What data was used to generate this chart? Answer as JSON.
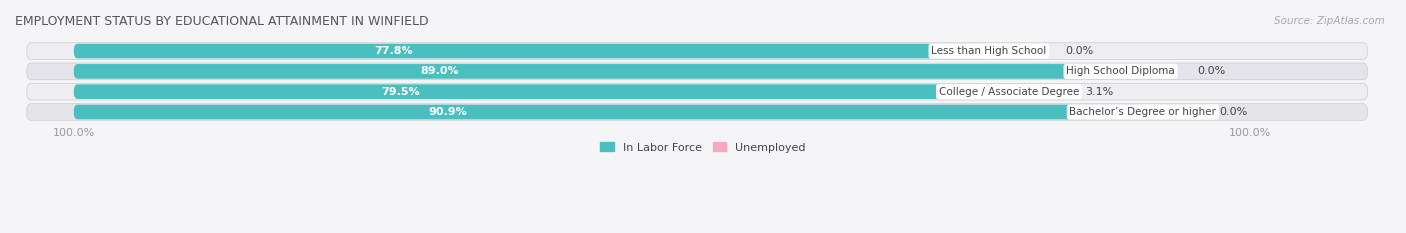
{
  "title": "EMPLOYMENT STATUS BY EDUCATIONAL ATTAINMENT IN WINFIELD",
  "source": "Source: ZipAtlas.com",
  "categories": [
    "Less than High School",
    "High School Diploma",
    "College / Associate Degree",
    "Bachelor’s Degree or higher"
  ],
  "labor_force": [
    77.8,
    89.0,
    79.5,
    90.9
  ],
  "unemployed": [
    0.0,
    0.0,
    3.1,
    0.0
  ],
  "labor_force_color": "#4bbfbf",
  "unemployed_color_low": "#f7a8c0",
  "unemployed_color_high": "#e0547a",
  "row_bg_colors": [
    "#ededf2",
    "#e4e4ea"
  ],
  "fig_bg_color": "#f5f5f8",
  "title_color": "#555555",
  "text_color_white": "#ffffff",
  "label_text_color": "#444444",
  "axis_label_color": "#999999",
  "legend_labor_color": "#4bbfbf",
  "legend_unemployed_color": "#f7a8c0",
  "x_left_label": "100.0%",
  "x_right_label": "100.0%"
}
